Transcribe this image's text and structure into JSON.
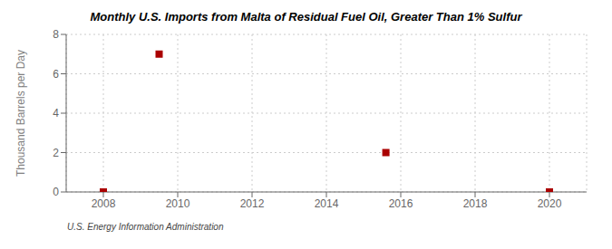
{
  "chart_data": {
    "type": "scatter",
    "title": "Monthly U.S. Imports from Malta of Residual Fuel Oil, Greater Than 1% Sulfur",
    "ylabel": "Thousand Barrels per Day",
    "annotations": [
      "U.S. Energy Information Administration"
    ],
    "x": [
      2008.0,
      2009.5,
      2015.6,
      2020.0
    ],
    "values": [
      0.0,
      7.0,
      2.0,
      0.0
    ],
    "color": "#aa0000",
    "marker": "square",
    "xlim": [
      2007.0,
      2021.0
    ],
    "ylim": [
      0,
      8
    ],
    "xticks": [
      2008,
      2010,
      2012,
      2014,
      2016,
      2018,
      2020
    ],
    "yticks": [
      0,
      2,
      4,
      6,
      8
    ],
    "grid": true
  }
}
